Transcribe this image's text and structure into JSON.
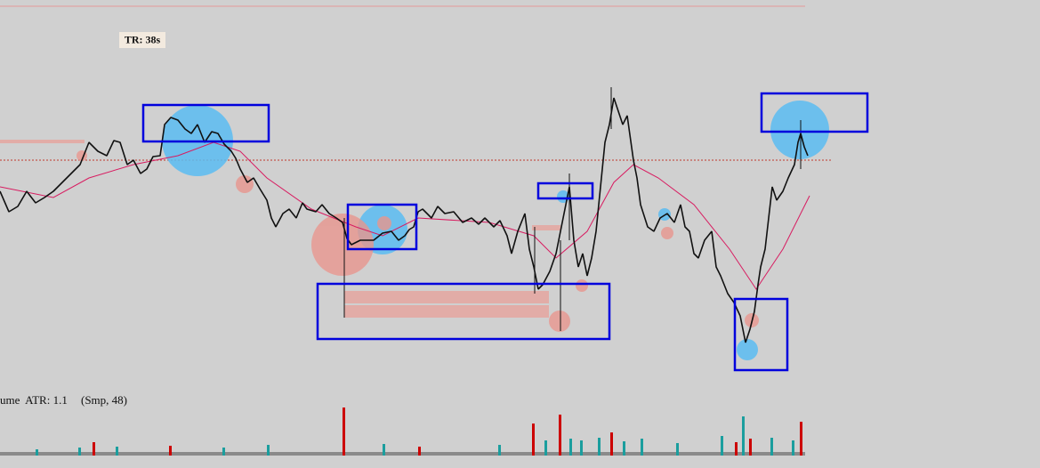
{
  "labels": {
    "timer": "TR: 38s",
    "indicator": "ume  ATR: 1.1",
    "params": "(Smp, 48)"
  }
}
